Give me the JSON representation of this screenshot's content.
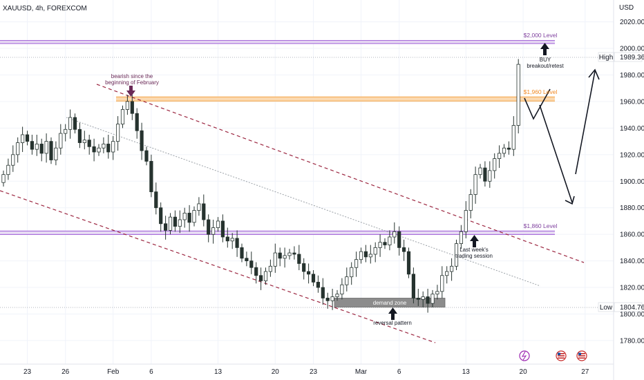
{
  "header": {
    "symbol_label": "XAUUSD, 4h, FOREXCOM"
  },
  "price_axis": {
    "currency": "USD"
  },
  "colors": {
    "up": "#26332f",
    "down": "#26332f",
    "level_purple": "#9b59d6",
    "level_orange": "#f5a343",
    "channel": "#9c2640",
    "midline": "#9aa0a6",
    "demand_zone": "#8c8c8c",
    "arrow_marker": "#6b2a57",
    "arrow_black": "#131722"
  },
  "chart_data": {
    "type": "candlestick",
    "title": "XAUUSD, 4h, FOREXCOM",
    "ylabel": "USD",
    "ylim": [
      1768,
      2025
    ],
    "y_ticks": [
      1780,
      1800,
      1820,
      1840,
      1860,
      1880,
      1900,
      1920,
      1940,
      1960,
      1980,
      2000,
      2020
    ],
    "x_ticks": [
      {
        "label": "23",
        "bar": 5
      },
      {
        "label": "26",
        "bar": 13
      },
      {
        "label": "Feb",
        "bar": 23
      },
      {
        "label": "6",
        "bar": 31
      },
      {
        "label": "13",
        "bar": 45
      },
      {
        "label": "20",
        "bar": 57
      },
      {
        "label": "23",
        "bar": 65
      },
      {
        "label": "Mar",
        "bar": 75
      },
      {
        "label": "6",
        "bar": 83
      },
      {
        "label": "13",
        "bar": 97
      },
      {
        "label": "20",
        "bar": 109
      },
      {
        "label": "27",
        "bar": 122
      }
    ],
    "grid": true,
    "close_series": [
      1905,
      1912,
      1920,
      1929,
      1935,
      1930,
      1924,
      1928,
      1921,
      1930,
      1916,
      1925,
      1936,
      1939,
      1948,
      1939,
      1929,
      1931,
      1926,
      1922,
      1925,
      1928,
      1922,
      1930,
      1943,
      1954,
      1960,
      1951,
      1938,
      1923,
      1915,
      1892,
      1880,
      1868,
      1863,
      1873,
      1866,
      1871,
      1876,
      1869,
      1878,
      1883,
      1871,
      1860,
      1865,
      1870,
      1858,
      1855,
      1857,
      1850,
      1842,
      1840,
      1835,
      1829,
      1825,
      1832,
      1836,
      1846,
      1842,
      1844,
      1846,
      1845,
      1838,
      1832,
      1830,
      1824,
      1820,
      1812,
      1810,
      1813,
      1815,
      1822,
      1828,
      1835,
      1841,
      1847,
      1843,
      1845,
      1850,
      1854,
      1852,
      1858,
      1862,
      1850,
      1847,
      1830,
      1812,
      1811,
      1813,
      1808,
      1815,
      1817,
      1829,
      1832,
      1836,
      1853,
      1862,
      1878,
      1890,
      1905,
      1910,
      1900,
      1908,
      1917,
      1921,
      1925,
      1924,
      1942,
      1988
    ],
    "overlay_lines": [
      {
        "name": "$2,000 Level",
        "price": 2000
      },
      {
        "name": "$1,960 Level",
        "price": 1960
      },
      {
        "name": "$1,860 Level",
        "price": 1860
      }
    ],
    "price_labels": [
      {
        "label": "High",
        "value": "1989.36"
      },
      {
        "label": "Low",
        "value": "1804.76"
      }
    ],
    "annotations": [
      "bearish since the beginning of February",
      "BUY breakout/retest",
      "Last week's trading session",
      "demand zone",
      "reversal pattern"
    ]
  },
  "annotations": {
    "level_2000": "$2,000 Level",
    "level_1960": "$1,960 Level",
    "level_1860": "$1,860 Level",
    "bearish_line1": "bearish since the",
    "bearish_line2": "beginning of February",
    "buy_line1": "BUY",
    "buy_line2": "breakout/retest",
    "lastweek_line1": "Last week's",
    "lastweek_line2": "trading session",
    "demand_zone": "demand zone",
    "reversal": "reversal pattern"
  },
  "labels": {
    "high_tag": "High",
    "high_value": "1989.36",
    "low_tag": "Low",
    "low_value": "1804.76"
  }
}
